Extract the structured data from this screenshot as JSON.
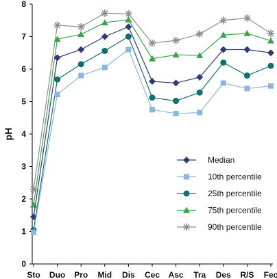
{
  "chart_data": {
    "type": "line",
    "title": "",
    "xlabel": "",
    "ylabel": "pH",
    "ylim": [
      0,
      8
    ],
    "yticks": [
      0,
      1,
      2,
      3,
      4,
      5,
      6,
      7,
      8
    ],
    "grid": false,
    "legend_position": "bottom-right",
    "categories": [
      "Sto",
      "Duo",
      "Pro",
      "Mid",
      "Dis",
      "Cec",
      "Asc",
      "Tra",
      "Des",
      "R/S",
      "Fec"
    ],
    "series": [
      {
        "name": "Median",
        "marker": "diamond",
        "color": "#2e3a78",
        "values": [
          1.45,
          6.35,
          6.6,
          7.0,
          7.3,
          5.62,
          5.57,
          5.75,
          6.6,
          6.6,
          6.5
        ]
      },
      {
        "name": "10th percentile",
        "marker": "square",
        "color": "#8cb6e0",
        "values": [
          0.97,
          5.22,
          5.8,
          6.05,
          6.6,
          4.75,
          4.63,
          4.66,
          5.57,
          5.4,
          5.48
        ]
      },
      {
        "name": "25th percentile",
        "marker": "circle",
        "color": "#0f6e6e",
        "values": [
          1.05,
          5.68,
          6.15,
          6.56,
          7.0,
          5.12,
          5.02,
          5.28,
          6.2,
          5.8,
          6.1
        ]
      },
      {
        "name": "75th percentile",
        "marker": "triangle",
        "color": "#3fa34d",
        "values": [
          1.82,
          6.92,
          7.07,
          7.43,
          7.52,
          6.32,
          6.44,
          6.42,
          7.05,
          7.1,
          6.87
        ]
      },
      {
        "name": "90th percentile",
        "marker": "star",
        "color": "#8f8f8f",
        "values": [
          2.3,
          7.35,
          7.3,
          7.72,
          7.7,
          6.8,
          6.88,
          7.08,
          7.5,
          7.57,
          7.1
        ]
      }
    ]
  }
}
